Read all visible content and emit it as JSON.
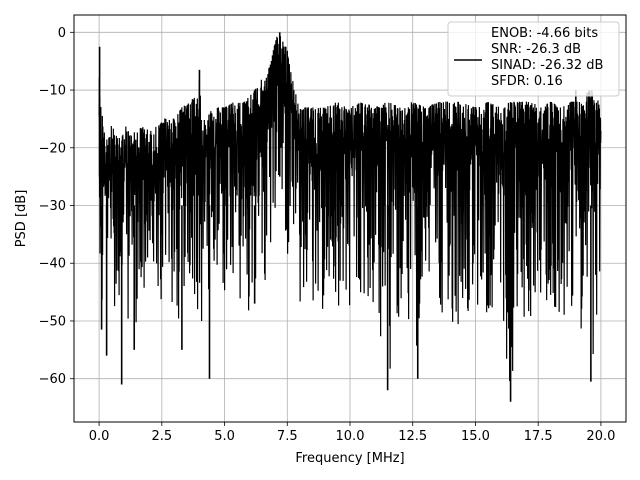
{
  "chart_data": {
    "type": "line",
    "title": "",
    "xlabel": "Frequency [MHz]",
    "ylabel": "PSD [dB]",
    "xlim": [
      -1.0,
      21.0
    ],
    "ylim": [
      -67.5,
      3.0
    ],
    "xticks": [
      0.0,
      2.5,
      5.0,
      7.5,
      10.0,
      12.5,
      15.0,
      17.5,
      20.0
    ],
    "xtick_labels": [
      "0.0",
      "2.5",
      "5.0",
      "7.5",
      "10.0",
      "12.5",
      "15.0",
      "17.5",
      "20.0"
    ],
    "yticks": [
      0,
      -10,
      -20,
      -30,
      -40,
      -50,
      -60
    ],
    "ytick_labels": [
      "0",
      "−10",
      "−20",
      "−30",
      "−40",
      "−50",
      "−60"
    ],
    "grid": true,
    "legend_position": "top-right",
    "line_color": "#000000",
    "series": [
      {
        "name": "",
        "legend_lines": [
          "ENOB: -4.66 bits",
          "SNR: -26.3 dB",
          "SINAD: -26.32 dB",
          "SFDR: 0.16"
        ],
        "x": [
          0.0,
          0.02,
          0.04,
          0.06,
          0.08,
          0.12,
          0.2,
          0.35,
          0.5,
          0.7,
          0.9,
          1.1,
          1.3,
          1.6,
          2.0,
          2.4,
          2.8,
          3.0,
          3.3,
          3.6,
          3.9,
          4.0,
          4.05,
          4.1,
          4.3,
          4.6,
          5.0,
          5.4,
          5.8,
          6.2,
          6.5,
          6.8,
          7.0,
          7.1,
          7.2,
          7.3,
          7.4,
          7.5,
          7.6,
          7.8,
          8.0,
          8.3,
          8.6,
          9.0,
          9.5,
          10.0,
          10.5,
          11.0,
          11.5,
          12.0,
          12.5,
          13.0,
          13.5,
          14.0,
          14.5,
          15.0,
          15.5,
          16.0,
          16.4,
          16.8,
          17.2,
          17.6,
          18.0,
          18.4,
          18.8,
          19.2,
          19.5,
          19.7,
          20.0
        ],
        "upper": [
          -6,
          -2.5,
          -12,
          -8,
          -16,
          -14,
          -17,
          -19,
          -16,
          -18,
          -17,
          -16,
          -18,
          -16,
          -17,
          -16,
          -14,
          -15,
          -13,
          -12,
          -10,
          -7,
          -12,
          -15,
          -14,
          -13,
          -13,
          -12,
          -12,
          -10,
          -8,
          -6,
          -2,
          -0.5,
          -0.2,
          -1,
          -2,
          -3,
          -6,
          -10,
          -13,
          -13,
          -13,
          -13,
          -12,
          -13,
          -12,
          -13,
          -12,
          -13,
          -12,
          -13,
          -12,
          -12,
          -12,
          -13,
          -12,
          -13,
          -12,
          -12,
          -12,
          -13,
          -12,
          -13,
          -12,
          -12,
          -10,
          -10,
          -13
        ],
        "lower": [
          -40,
          -52,
          -44,
          -50,
          -46,
          -57,
          -45,
          -47,
          -50,
          -46,
          -61,
          -48,
          -57,
          -50,
          -48,
          -52,
          -46,
          -51,
          -53,
          -48,
          -50,
          -45,
          -50,
          -60,
          -49,
          -48,
          -51,
          -47,
          -50,
          -46,
          -48,
          -44,
          -33,
          -28,
          -30,
          -34,
          -38,
          -40,
          -44,
          -48,
          -50,
          -49,
          -47,
          -49,
          -48,
          -50,
          -48,
          -49,
          -62,
          -49,
          -58,
          -49,
          -48,
          -51,
          -52,
          -49,
          -50,
          -48,
          -64,
          -50,
          -52,
          -49,
          -48,
          -51,
          -50,
          -52,
          -49,
          -61,
          -42
        ],
        "spikes": [
          {
            "x": 0.02,
            "y": -2.5
          },
          {
            "x": 0.1,
            "y": -51.5
          },
          {
            "x": 0.3,
            "y": -56
          },
          {
            "x": 0.9,
            "y": -61
          },
          {
            "x": 1.4,
            "y": -55
          },
          {
            "x": 3.3,
            "y": -55
          },
          {
            "x": 4.0,
            "y": -6.5
          },
          {
            "x": 4.4,
            "y": -60
          },
          {
            "x": 6.2,
            "y": -47
          },
          {
            "x": 7.2,
            "y": 0
          },
          {
            "x": 11.5,
            "y": -62
          },
          {
            "x": 12.7,
            "y": -60
          },
          {
            "x": 16.4,
            "y": -64
          },
          {
            "x": 19.0,
            "y": -10
          },
          {
            "x": 19.6,
            "y": -60.5
          }
        ]
      }
    ]
  }
}
